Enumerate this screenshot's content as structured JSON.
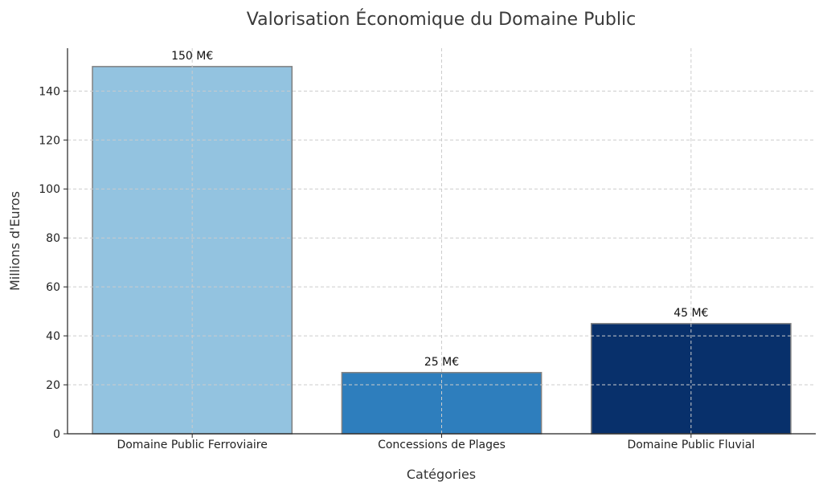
{
  "chart_data": {
    "type": "bar",
    "title": "Valorisation Économique du Domaine Public",
    "xlabel": "Catégories",
    "ylabel": "Millions d'Euros",
    "categories": [
      "Domaine Public Ferroviaire",
      "Concessions de Plages",
      "Domaine Public Fluvial"
    ],
    "values": [
      150,
      25,
      45
    ],
    "data_labels": [
      "150 M€",
      "25 M€",
      "45 M€"
    ],
    "colors": [
      "#93c3e0",
      "#2e7ebd",
      "#08306b"
    ],
    "edge_color": "#808080",
    "ylim": [
      0,
      157.5
    ],
    "yticks": [
      0,
      20,
      40,
      60,
      80,
      100,
      120,
      140
    ],
    "grid": true,
    "legend": "none"
  }
}
